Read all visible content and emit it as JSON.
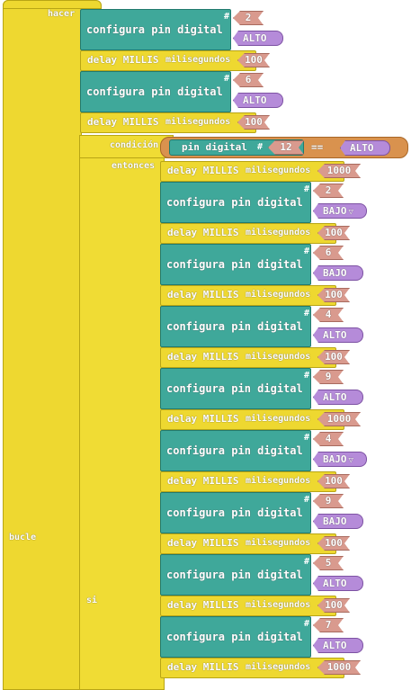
{
  "outer": {
    "bucle_label": "bucle",
    "hacer_label": "hacer"
  },
  "si_block": {
    "si_label": "si",
    "condicion_label": "condición",
    "entonces_label": "entonces"
  },
  "condition": {
    "pin_label": "pin digital",
    "hash": "#",
    "pin": "12",
    "op": "==",
    "value": "ALTO"
  },
  "labels": {
    "config": "configura pin digital",
    "delay": "delay MILLIS",
    "ms": "milisegundos",
    "hash": "#",
    "dropdown_arrow": "▽"
  },
  "top_blocks": [
    {
      "type": "config",
      "pin": "2",
      "state": "ALTO"
    },
    {
      "type": "delay",
      "value": "100"
    },
    {
      "type": "config",
      "pin": "6",
      "state": "ALTO"
    },
    {
      "type": "delay",
      "value": "100"
    }
  ],
  "inner_blocks": [
    {
      "type": "delay",
      "value": "1000"
    },
    {
      "type": "config",
      "pin": "2",
      "state": "BAJO",
      "dropdown": true
    },
    {
      "type": "delay",
      "value": "100"
    },
    {
      "type": "config",
      "pin": "6",
      "state": "BAJO"
    },
    {
      "type": "delay",
      "value": "100"
    },
    {
      "type": "config",
      "pin": "4",
      "state": "ALTO"
    },
    {
      "type": "delay",
      "value": "100"
    },
    {
      "type": "config",
      "pin": "9",
      "state": "ALTO"
    },
    {
      "type": "delay",
      "value": "1000"
    },
    {
      "type": "config",
      "pin": "4",
      "state": "BAJO",
      "dropdown": true
    },
    {
      "type": "delay",
      "value": "100"
    },
    {
      "type": "config",
      "pin": "9",
      "state": "BAJO"
    },
    {
      "type": "delay",
      "value": "100"
    },
    {
      "type": "config",
      "pin": "5",
      "state": "ALTO"
    },
    {
      "type": "delay",
      "value": "100"
    },
    {
      "type": "config",
      "pin": "7",
      "state": "ALTO"
    },
    {
      "type": "delay",
      "value": "1000"
    }
  ]
}
